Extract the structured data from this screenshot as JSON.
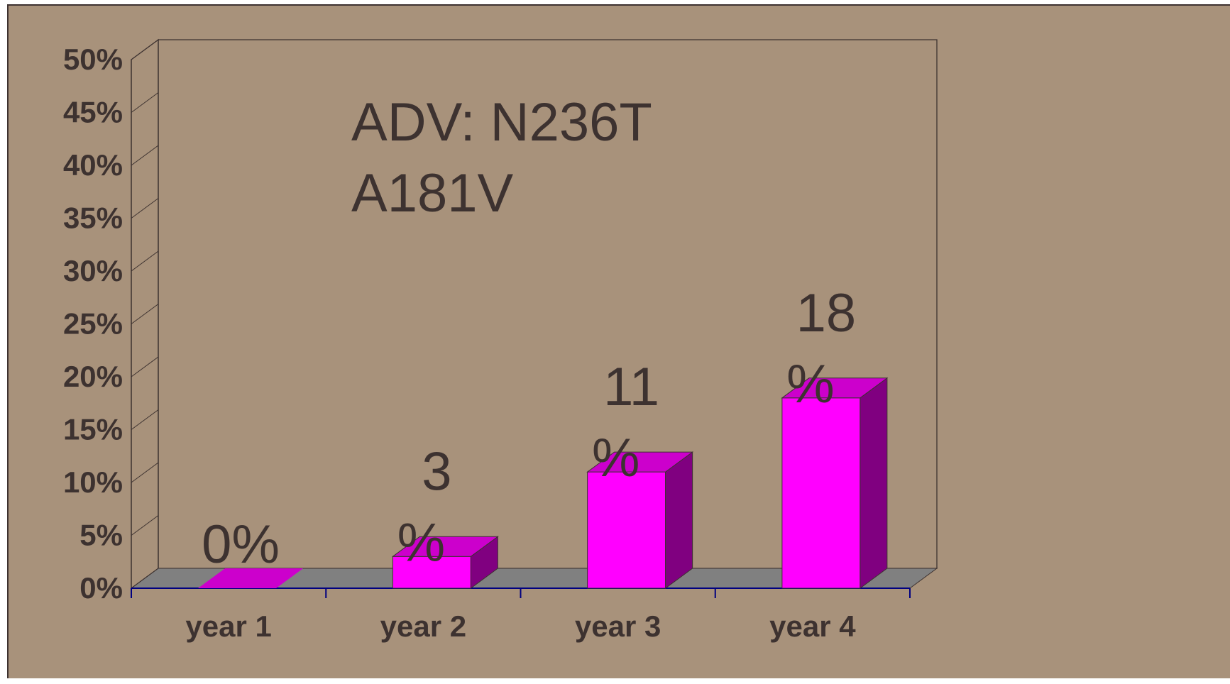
{
  "chart_data": {
    "type": "bar",
    "title_lines": [
      "ADV: N236T",
      "A181V"
    ],
    "categories": [
      "year 1",
      "year 2",
      "year 3",
      "year 4"
    ],
    "values": [
      0,
      3,
      11,
      18
    ],
    "data_labels": [
      [
        "0%"
      ],
      [
        "3",
        "%"
      ],
      [
        "11",
        "%"
      ],
      [
        "18",
        "%"
      ]
    ],
    "ylim": [
      0,
      50
    ],
    "yticks": [
      0,
      5,
      10,
      15,
      20,
      25,
      30,
      35,
      40,
      45,
      50
    ],
    "ytick_labels": [
      "0%",
      "5%",
      "10%",
      "15%",
      "20%",
      "25%",
      "30%",
      "35%",
      "40%",
      "45%",
      "50%"
    ],
    "xlabel": "",
    "ylabel": "",
    "grid": false,
    "legend": "none",
    "colors": {
      "background": "#a8927b",
      "bar_front": "#ff00ff",
      "bar_top": "#cc00cc",
      "bar_side": "#800080",
      "floor": "#808080",
      "text": "#3d3230",
      "axis": "#000080"
    }
  }
}
